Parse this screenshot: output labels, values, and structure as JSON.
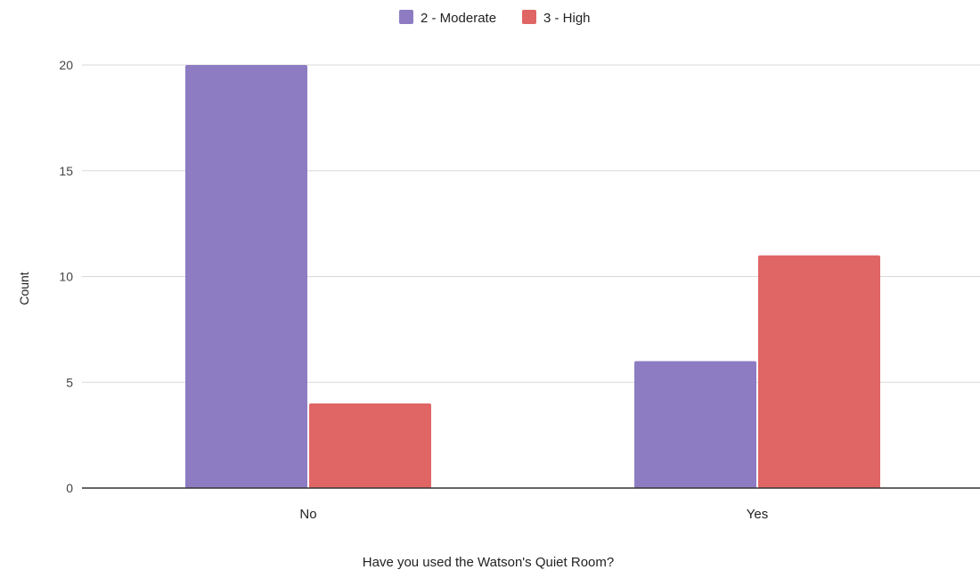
{
  "chart_data": {
    "type": "bar",
    "title": "",
    "categories": [
      "No",
      "Yes"
    ],
    "series": [
      {
        "name": "2 - Moderate",
        "values": [
          20,
          6
        ],
        "color": "#8e7cc3"
      },
      {
        "name": "3 - High",
        "values": [
          4,
          11
        ],
        "color": "#e06666"
      }
    ],
    "xlabel": "Have you used the Watson's Quiet Room?",
    "ylabel": "Count",
    "ylim": [
      0,
      20
    ],
    "yticks": [
      0,
      5,
      10,
      15,
      20
    ],
    "grid": true,
    "legend_position": "top-center"
  }
}
